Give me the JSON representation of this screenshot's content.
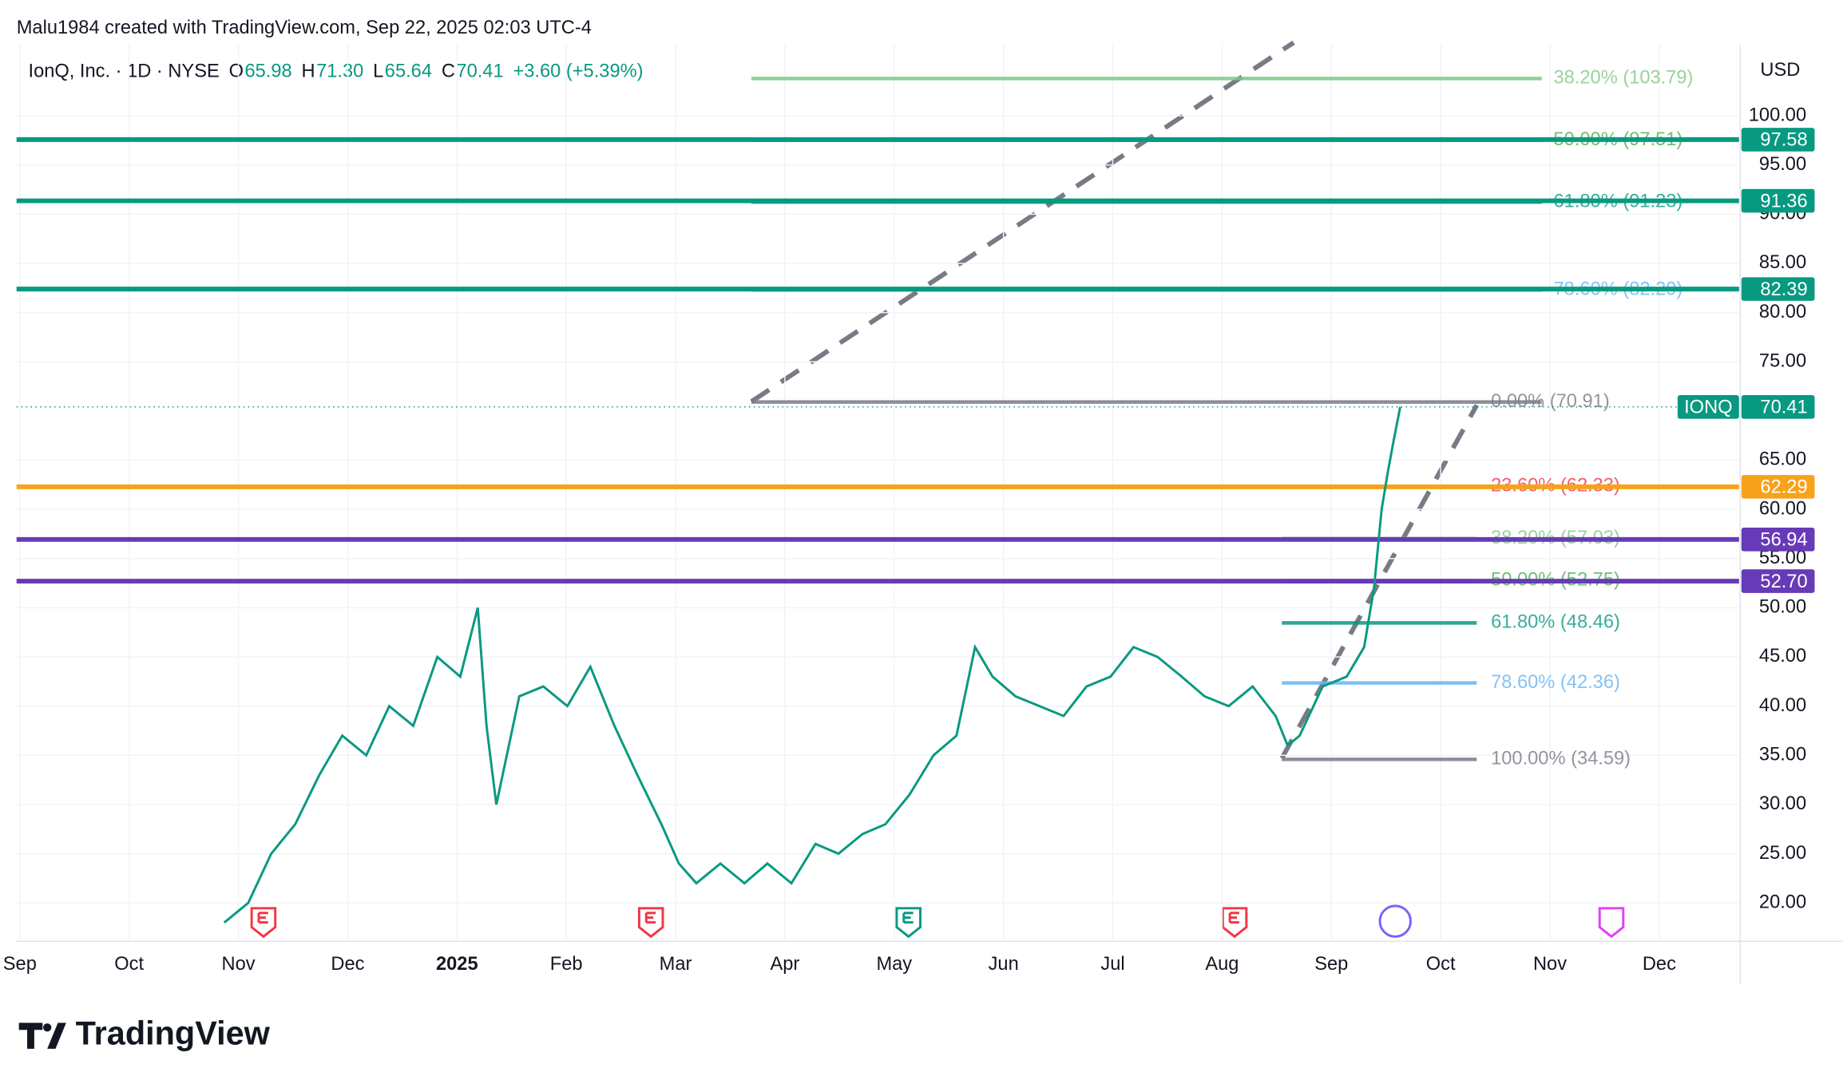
{
  "header": {
    "author": "Malu1984 created with TradingView.com, Sep 22, 2025 02:03 UTC-4",
    "logo": "TradingView"
  },
  "chart_data": {
    "type": "line",
    "title": "IonQ, Inc. · 1D · NYSE",
    "ohlc": [
      {
        "label": "O",
        "value": "65.98"
      },
      {
        "label": "H",
        "value": "71.30"
      },
      {
        "label": "L",
        "value": "65.64"
      },
      {
        "label": "C",
        "value": "70.41"
      }
    ],
    "change": "+3.60 (+5.39%)",
    "currency": "USD",
    "x": [
      1.87,
      2.09,
      2.3,
      2.52,
      2.74,
      2.95,
      3.17,
      3.38,
      3.6,
      3.82,
      4.03,
      4.19,
      4.27,
      4.36,
      4.57,
      4.79,
      5.01,
      5.22,
      5.44,
      5.65,
      5.87,
      6.03,
      6.19,
      6.41,
      6.63,
      6.84,
      7.06,
      7.28,
      7.49,
      7.71,
      7.92,
      8.14,
      8.36,
      8.57,
      8.74,
      8.9,
      9.11,
      9.33,
      9.55,
      9.76,
      9.98,
      10.19,
      10.41,
      10.63,
      10.84,
      11.06,
      11.28,
      11.49,
      11.6,
      11.71,
      11.92,
      12.14,
      12.3,
      12.39,
      12.46,
      12.52,
      12.57,
      12.63
    ],
    "series": [
      {
        "name": "IONQ",
        "color": "#089981",
        "values": [
          18,
          20,
          25,
          28,
          33,
          37,
          35,
          40,
          38,
          45,
          43,
          50,
          38,
          30,
          41,
          42,
          40,
          44,
          38,
          33,
          28,
          24,
          22,
          24,
          22,
          24,
          22,
          26,
          25,
          27,
          28,
          31,
          35,
          37,
          46,
          43,
          41,
          40,
          39,
          42,
          43,
          46,
          45,
          43,
          41,
          40,
          42,
          39,
          36,
          37,
          42,
          43,
          46,
          52,
          60,
          64,
          67,
          70.41
        ]
      }
    ],
    "last_price": {
      "label": "IONQ",
      "value": 70.41
    },
    "price_levels": [
      {
        "value": 97.58,
        "label": "97.58",
        "color": "#089981"
      },
      {
        "value": 91.36,
        "label": "91.36",
        "color": "#089981"
      },
      {
        "value": 82.39,
        "label": "82.39",
        "color": "#089981"
      },
      {
        "value": 62.29,
        "label": "62.29",
        "color": "#f7a21b"
      },
      {
        "value": 56.94,
        "label": "56.94",
        "color": "#673ab7"
      },
      {
        "value": 52.7,
        "label": "52.70",
        "color": "#673ab7"
      }
    ],
    "fib_levels": [
      {
        "value": 103.79,
        "label": "38.20% (103.79)",
        "color": "#81c784"
      },
      {
        "value": 97.51,
        "label": "50.00% (97.51)",
        "color": "#4caf50"
      },
      {
        "value": 91.23,
        "label": "61.80% (91.23)",
        "color": "#089981"
      },
      {
        "value": 82.29,
        "label": "78.60% (82.29)",
        "color": "#64b5f6"
      },
      {
        "value": 70.91,
        "label": "0.00% (70.91)",
        "color": "#787b86"
      },
      {
        "value": 62.33,
        "label": "23.60% (62.33)",
        "color": "#f23645"
      },
      {
        "value": 57.03,
        "label": "38.20% (57.03)",
        "color": "#81c784"
      },
      {
        "value": 52.75,
        "label": "50.00% (52.75)",
        "color": "#4caf50"
      },
      {
        "value": 48.46,
        "label": "61.80% (48.46)",
        "color": "#089981"
      },
      {
        "value": 42.36,
        "label": "78.60% (42.36)",
        "color": "#64b5f6"
      },
      {
        "value": 34.59,
        "label": "100.00% (34.59)",
        "color": "#787b86"
      }
    ],
    "ylim": [
      16.1,
      107.2
    ],
    "yticks": [
      {
        "value": 20,
        "label": "20.00"
      },
      {
        "value": 25,
        "label": "25.00"
      },
      {
        "value": 30,
        "label": "30.00"
      },
      {
        "value": 35,
        "label": "35.00"
      },
      {
        "value": 40,
        "label": "40.00"
      },
      {
        "value": 45,
        "label": "45.00"
      },
      {
        "value": 50,
        "label": "50.00"
      },
      {
        "value": 55,
        "label": "55.00"
      },
      {
        "value": 60,
        "label": "60.00"
      },
      {
        "value": 65,
        "label": "65.00"
      },
      {
        "value": 75,
        "label": "75.00"
      },
      {
        "value": 80,
        "label": "80.00"
      },
      {
        "value": 85,
        "label": "85.00"
      },
      {
        "value": 90,
        "label": "90.00"
      },
      {
        "value": 95,
        "label": "95.00"
      },
      {
        "value": 100,
        "label": "100.00"
      }
    ],
    "xlim": [
      -0.03,
      15.73
    ],
    "xticks": [
      {
        "value": 0,
        "label": "Sep"
      },
      {
        "value": 1,
        "label": "Oct"
      },
      {
        "value": 2,
        "label": "Nov"
      },
      {
        "value": 3,
        "label": "Dec"
      },
      {
        "value": 4,
        "label": "2025"
      },
      {
        "value": 5,
        "label": "Feb"
      },
      {
        "value": 6,
        "label": "Mar"
      },
      {
        "value": 7,
        "label": "Apr"
      },
      {
        "value": 8,
        "label": "May"
      },
      {
        "value": 9,
        "label": "Jun"
      },
      {
        "value": 10,
        "label": "Jul"
      },
      {
        "value": 11,
        "label": "Aug"
      },
      {
        "value": 12,
        "label": "Sep"
      },
      {
        "value": 13,
        "label": "Oct"
      },
      {
        "value": 14,
        "label": "Nov"
      },
      {
        "value": 15,
        "label": "Dec"
      }
    ],
    "grid": true
  }
}
